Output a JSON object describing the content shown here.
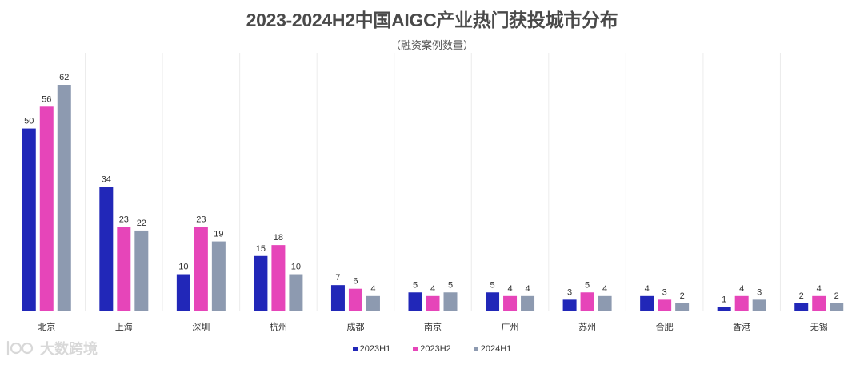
{
  "title": "2023-2024H2中国AIGC产业热门获投城市分布",
  "subtitle": "（融资案例数量）",
  "watermark_text": "大数跨境",
  "colors": {
    "2023H1": "#2127b8",
    "2023H2": "#e645b9",
    "2024H1": "#8d9ab0",
    "grid": "#ececec",
    "axis": "#d0d0d0"
  },
  "chart_data": {
    "type": "bar",
    "categories": [
      "北京",
      "上海",
      "深圳",
      "杭州",
      "成都",
      "南京",
      "广州",
      "苏州",
      "合肥",
      "香港",
      "无锡"
    ],
    "series": [
      {
        "name": "2023H1",
        "values": [
          50,
          34,
          10,
          15,
          7,
          5,
          5,
          3,
          4,
          1,
          2
        ]
      },
      {
        "name": "2023H2",
        "values": [
          56,
          23,
          23,
          18,
          6,
          4,
          4,
          5,
          3,
          4,
          4
        ]
      },
      {
        "name": "2024H1",
        "values": [
          62,
          22,
          19,
          10,
          4,
          5,
          4,
          4,
          2,
          3,
          2
        ]
      }
    ],
    "ylim": [
      0,
      62
    ],
    "grid": "vertical separators between categories",
    "legend": "bottom-center"
  }
}
